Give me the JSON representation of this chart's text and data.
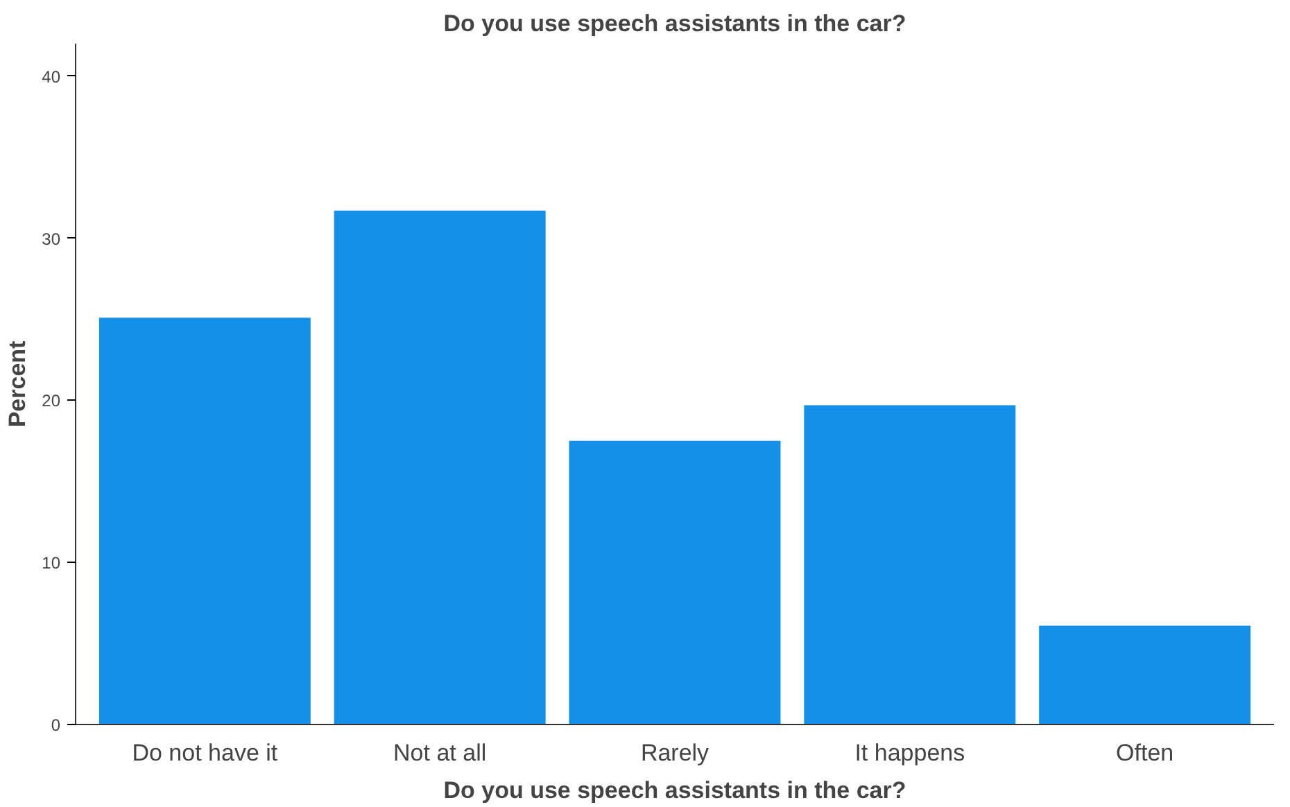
{
  "chart_data": {
    "type": "bar",
    "title": "Do you use speech assistants in the car?",
    "xlabel": "Do you use speech assistants in the car?",
    "ylabel": "Percent",
    "categories": [
      "Do not have it",
      "Not at all",
      "Rarely",
      "It happens",
      "Often"
    ],
    "values": [
      25.1,
      31.7,
      17.5,
      19.7,
      6.1
    ],
    "color": "#1490e8",
    "ylim": [
      0,
      42
    ],
    "yticks": [
      0,
      10,
      20,
      30,
      40
    ],
    "grid": false
  }
}
